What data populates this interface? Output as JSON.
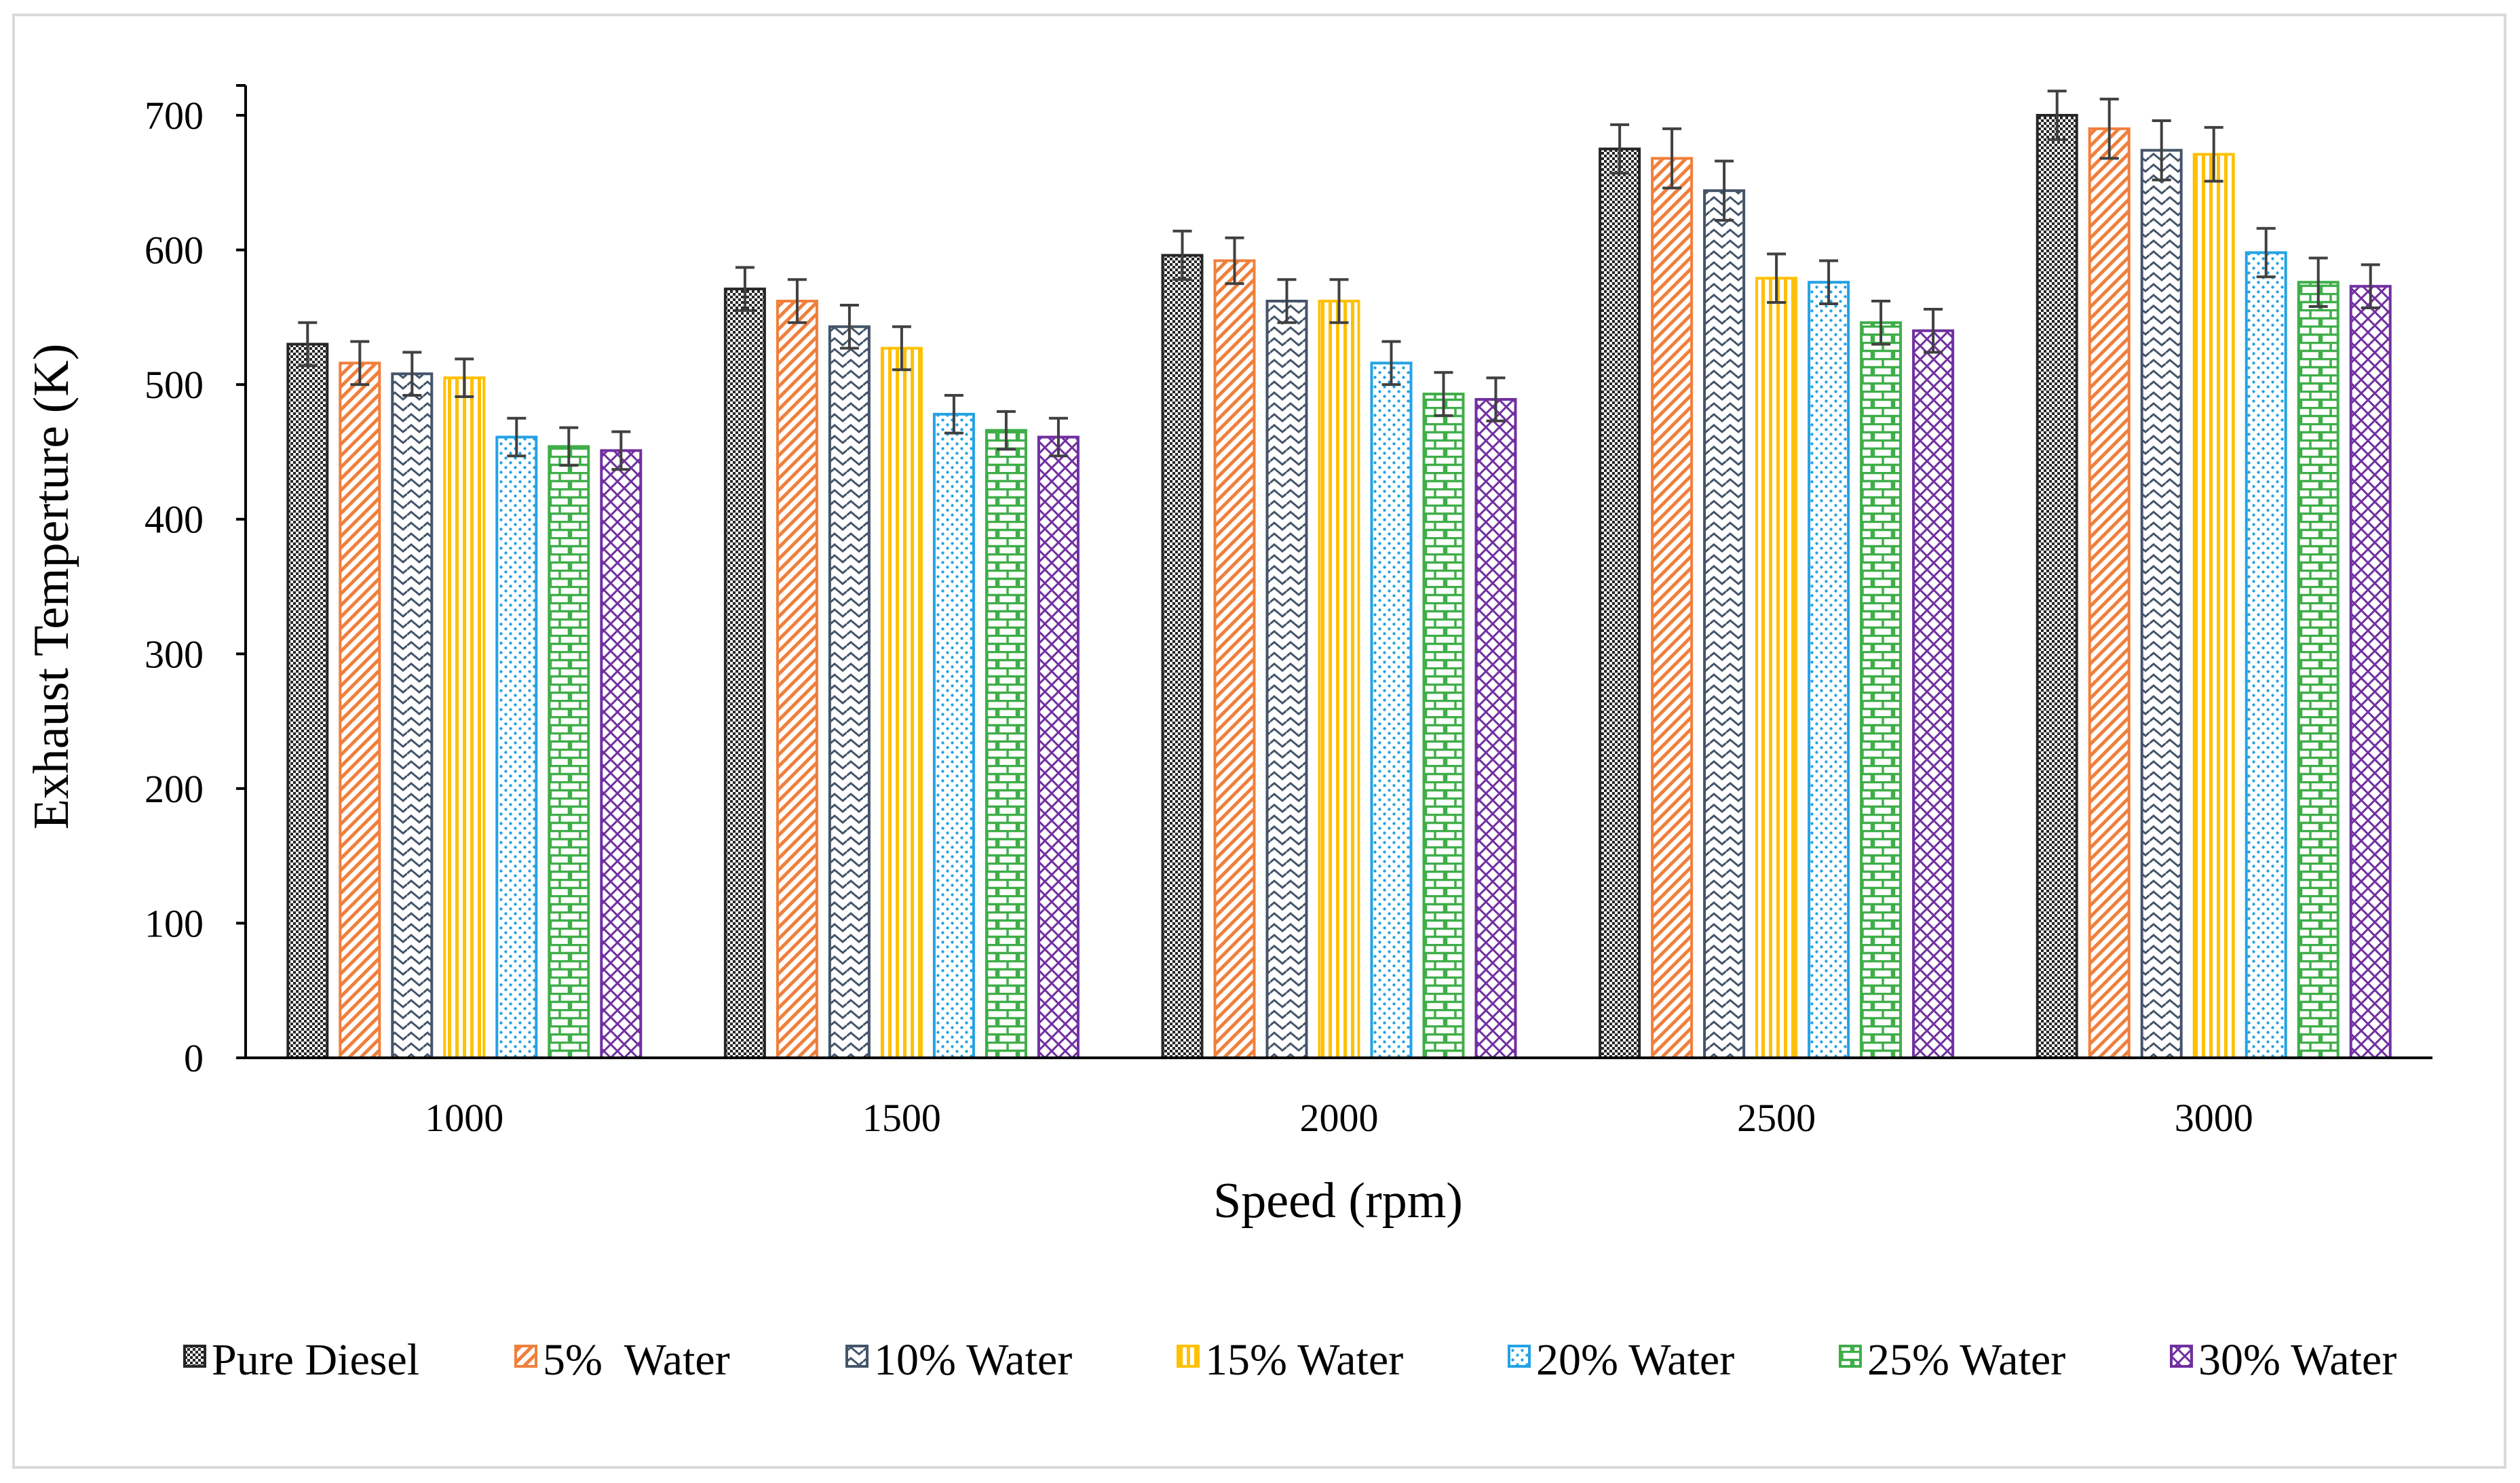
{
  "chart_data": {
    "type": "bar",
    "title": "",
    "xlabel": "Speed (rpm)",
    "ylabel": "Exhaust Temperture (K)",
    "ylim": [
      0,
      700
    ],
    "yticks": [
      0,
      100,
      200,
      300,
      400,
      500,
      600,
      700
    ],
    "categories": [
      "1000",
      "1500",
      "2000",
      "2500",
      "3000"
    ],
    "grid": false,
    "legend_position": "bottom",
    "error_bars": true,
    "series": [
      {
        "name": "Pure Diesel",
        "values": [
          530,
          571,
          596,
          675,
          700
        ],
        "error": [
          16,
          16,
          18,
          18,
          18
        ],
        "color": "#262626",
        "pattern": "checker"
      },
      {
        "name": "5%  Water",
        "values": [
          516,
          562,
          592,
          668,
          690
        ],
        "error": [
          16,
          16,
          17,
          22,
          22
        ],
        "color": "#f07f3c",
        "pattern": "diag-dense"
      },
      {
        "name": "10% Water",
        "values": [
          508,
          543,
          562,
          644,
          674
        ],
        "error": [
          16,
          16,
          16,
          22,
          22
        ],
        "color": "#44546a",
        "pattern": "wave"
      },
      {
        "name": "15% Water",
        "values": [
          505,
          527,
          562,
          579,
          671
        ],
        "error": [
          14,
          16,
          16,
          18,
          20
        ],
        "color": "#ffc000",
        "pattern": "vertical"
      },
      {
        "name": "20% Water",
        "values": [
          461,
          478,
          516,
          576,
          598
        ],
        "error": [
          14,
          14,
          16,
          16,
          18
        ],
        "color": "#23a2e3",
        "pattern": "dots"
      },
      {
        "name": "25% Water",
        "values": [
          454,
          466,
          493,
          546,
          576
        ],
        "error": [
          14,
          14,
          16,
          16,
          18
        ],
        "color": "#3fae49",
        "pattern": "brick"
      },
      {
        "name": "30% Water",
        "values": [
          451,
          461,
          489,
          540,
          573
        ],
        "error": [
          14,
          14,
          16,
          16,
          16
        ],
        "color": "#7030a0",
        "pattern": "cross"
      }
    ]
  }
}
